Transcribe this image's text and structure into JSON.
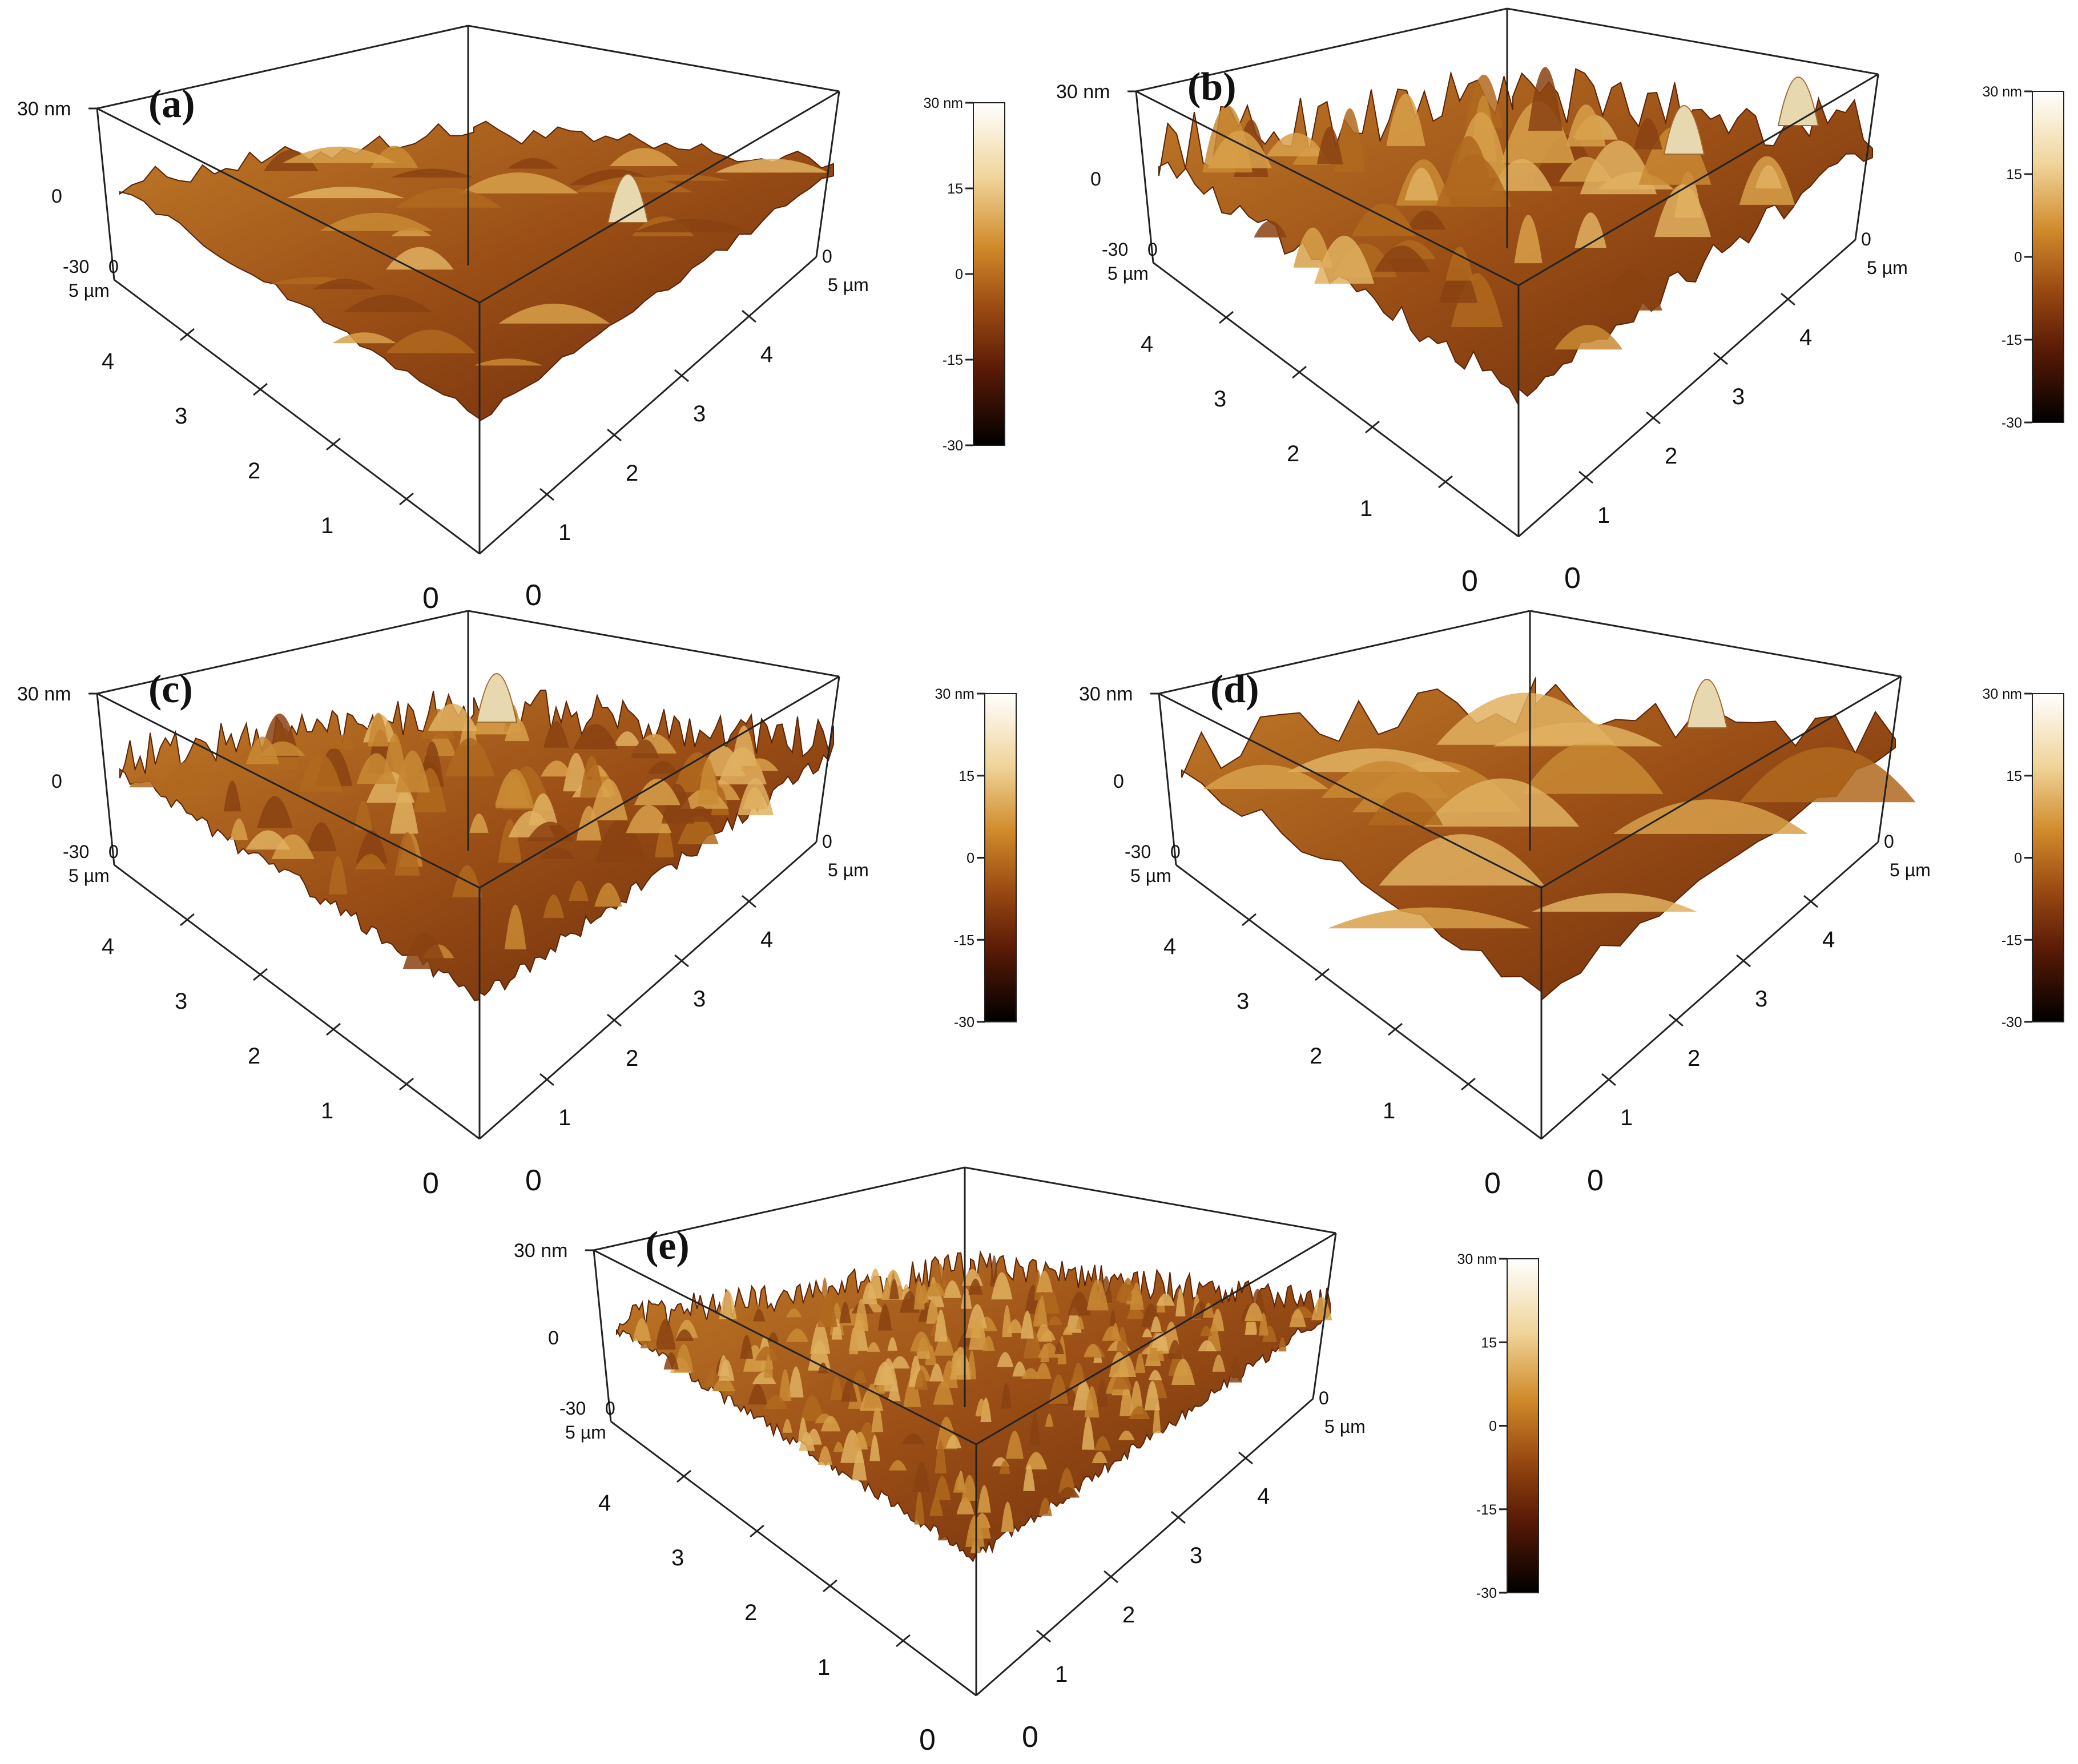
{
  "panels": [
    {
      "label": "(a)",
      "z_top": "30 nm",
      "z_mid": "0",
      "z_bot": "-30",
      "x_ticks": [
        "0",
        "1",
        "2",
        "3",
        "4",
        "5 µm"
      ],
      "y_ticks": [
        "0",
        "1",
        "2",
        "3",
        "4",
        "5 µm"
      ],
      "corner_left": "0",
      "corner_right": "0",
      "colorbar_labels": [
        "30 nm",
        "15",
        "0",
        "-15",
        "-30"
      ],
      "roughness": "low, broad undulations with one ridge"
    },
    {
      "label": "(b)",
      "z_top": "30 nm",
      "z_mid": "0",
      "z_bot": "-30",
      "x_ticks": [
        "0",
        "1",
        "2",
        "3",
        "4",
        "5 µm"
      ],
      "y_ticks": [
        "0",
        "1",
        "2",
        "3",
        "4",
        "5 µm"
      ],
      "corner_left": "0",
      "corner_right": "0",
      "colorbar_labels": [
        "30 nm",
        "15",
        "0",
        "-15",
        "-30"
      ],
      "roughness": "high, sharp peaks and valleys"
    },
    {
      "label": "(c)",
      "z_top": "30 nm",
      "z_mid": "0",
      "z_bot": "-30",
      "x_ticks": [
        "0",
        "1",
        "2",
        "3",
        "4",
        "5 µm"
      ],
      "y_ticks": [
        "0",
        "1",
        "2",
        "3",
        "4",
        "5 µm"
      ],
      "corner_left": "0",
      "corner_right": "0",
      "colorbar_labels": [
        "30 nm",
        "15",
        "0",
        "-15",
        "-30"
      ],
      "roughness": "medium, dense granular peaks"
    },
    {
      "label": "(d)",
      "z_top": "30 nm",
      "z_mid": "0",
      "z_bot": "-30",
      "x_ticks": [
        "0",
        "1",
        "2",
        "3",
        "4",
        "5 µm"
      ],
      "y_ticks": [
        "0",
        "1",
        "2",
        "3",
        "4",
        "5 µm"
      ],
      "corner_left": "0",
      "corner_right": "0",
      "colorbar_labels": [
        "30 nm",
        "15",
        "0",
        "-15",
        "-30"
      ],
      "roughness": "smooth large waves"
    },
    {
      "label": "(e)",
      "z_top": "30 nm",
      "z_mid": "0",
      "z_bot": "-30",
      "x_ticks": [
        "0",
        "1",
        "2",
        "3",
        "4",
        "5 µm"
      ],
      "y_ticks": [
        "0",
        "1",
        "2",
        "3",
        "4",
        "5 µm"
      ],
      "corner_left": "0",
      "corner_right": "0",
      "colorbar_labels": [
        "30 nm",
        "15",
        "0",
        "-15",
        "-30"
      ],
      "roughness": "fine, regular dense spikes"
    }
  ],
  "colormap": [
    "#ffffff",
    "#f3e2b8",
    "#d49a3a",
    "#a85a17",
    "#6e2a0a",
    "#2a0a02",
    "#000000"
  ]
}
